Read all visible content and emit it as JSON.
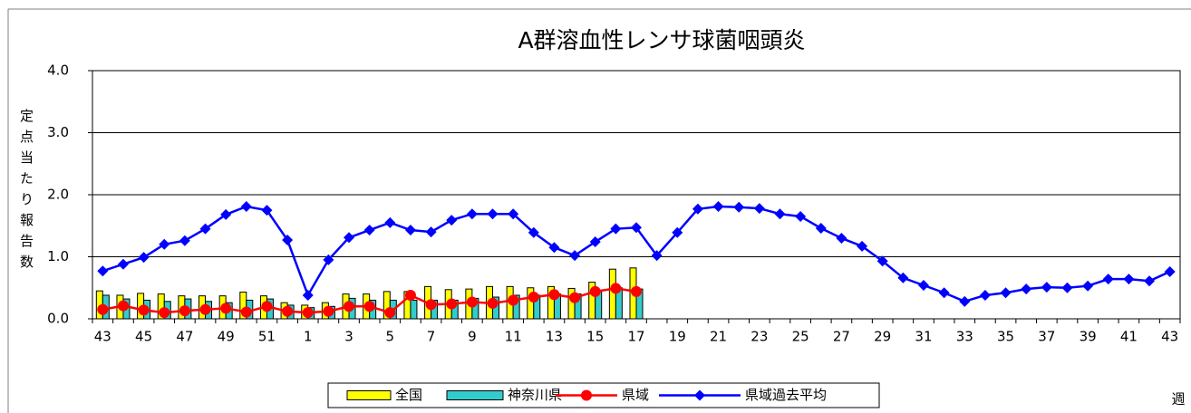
{
  "chart_data": {
    "type": "bar",
    "title": "A群溶血性レンサ球菌咽頭炎",
    "y_label": "定点当たり報告数",
    "x_label": "週",
    "categories": [
      "43",
      null,
      "45",
      null,
      "47",
      null,
      "49",
      null,
      "51",
      null,
      "1",
      null,
      "3",
      null,
      "5",
      null,
      "7",
      null,
      "9",
      null,
      "11",
      null,
      "13",
      null,
      "15",
      null,
      "17",
      null,
      "19",
      null,
      "21",
      null,
      "23",
      null,
      "25",
      null,
      "27",
      null,
      "29",
      null,
      "31",
      null,
      "33",
      null,
      "35",
      null,
      "37",
      null,
      "39",
      null,
      "41",
      null,
      "43"
    ],
    "ylim": [
      0,
      4
    ],
    "yticks": [
      {
        "value": 0,
        "label": "0.0"
      },
      {
        "value": 1,
        "label": "1.0"
      },
      {
        "value": 2,
        "label": "2.0"
      },
      {
        "value": 3,
        "label": "3.0"
      },
      {
        "value": 4,
        "label": "4.0"
      }
    ],
    "grid": true,
    "legend": "bottom",
    "series": [
      {
        "name": "全国",
        "kind": "bar",
        "color": "#ffff00",
        "values": [
          0.45,
          0.38,
          0.41,
          0.4,
          0.37,
          0.37,
          0.37,
          0.43,
          0.37,
          0.26,
          0.22,
          0.26,
          0.4,
          0.4,
          0.44,
          0.44,
          0.52,
          0.47,
          0.48,
          0.52,
          0.52,
          0.5,
          0.52,
          0.49,
          0.59,
          0.8,
          0.82,
          null,
          null,
          null,
          null,
          null,
          null,
          null,
          null,
          null,
          null,
          null,
          null,
          null,
          null,
          null,
          null,
          null,
          null,
          null,
          null,
          null,
          null,
          null,
          null,
          null,
          null
        ]
      },
      {
        "name": "神奈川県",
        "kind": "bar",
        "color": "#33cccc",
        "values": [
          0.38,
          0.32,
          0.3,
          0.28,
          0.32,
          0.28,
          0.26,
          0.3,
          0.32,
          0.22,
          0.18,
          0.2,
          0.33,
          0.3,
          0.3,
          0.3,
          0.3,
          0.3,
          0.33,
          0.35,
          0.38,
          0.38,
          0.4,
          0.4,
          0.45,
          0.5,
          0.48,
          null,
          null,
          null,
          null,
          null,
          null,
          null,
          null,
          null,
          null,
          null,
          null,
          null,
          null,
          null,
          null,
          null,
          null,
          null,
          null,
          null,
          null,
          null,
          null,
          null,
          null
        ]
      },
      {
        "name": "県域",
        "kind": "line",
        "marker": "circle",
        "color": "#ff0000",
        "values": [
          0.15,
          0.21,
          0.14,
          0.1,
          0.13,
          0.15,
          0.17,
          0.11,
          0.2,
          0.12,
          0.1,
          0.12,
          0.2,
          0.2,
          0.1,
          0.38,
          0.23,
          0.24,
          0.27,
          0.25,
          0.3,
          0.35,
          0.39,
          0.34,
          0.44,
          0.49,
          0.44,
          null,
          null,
          null,
          null,
          null,
          null,
          null,
          null,
          null,
          null,
          null,
          null,
          null,
          null,
          null,
          null,
          null,
          null,
          null,
          null,
          null,
          null,
          null,
          null,
          null,
          null
        ]
      },
      {
        "name": "県域過去平均",
        "kind": "line",
        "marker": "diamond",
        "color": "#0000ff",
        "values": [
          0.77,
          0.88,
          0.99,
          1.2,
          1.26,
          1.45,
          1.68,
          1.81,
          1.75,
          1.27,
          0.38,
          0.95,
          1.31,
          1.43,
          1.55,
          1.43,
          1.4,
          1.59,
          1.69,
          1.69,
          1.69,
          1.39,
          1.15,
          1.02,
          1.24,
          1.45,
          1.47,
          1.02,
          1.39,
          1.77,
          1.81,
          1.8,
          1.78,
          1.69,
          1.65,
          1.46,
          1.3,
          1.17,
          0.93,
          0.66,
          0.54,
          0.42,
          0.28,
          0.38,
          0.42,
          0.48,
          0.51,
          0.5,
          0.53,
          0.64,
          0.64,
          0.61,
          0.76
        ]
      }
    ]
  }
}
